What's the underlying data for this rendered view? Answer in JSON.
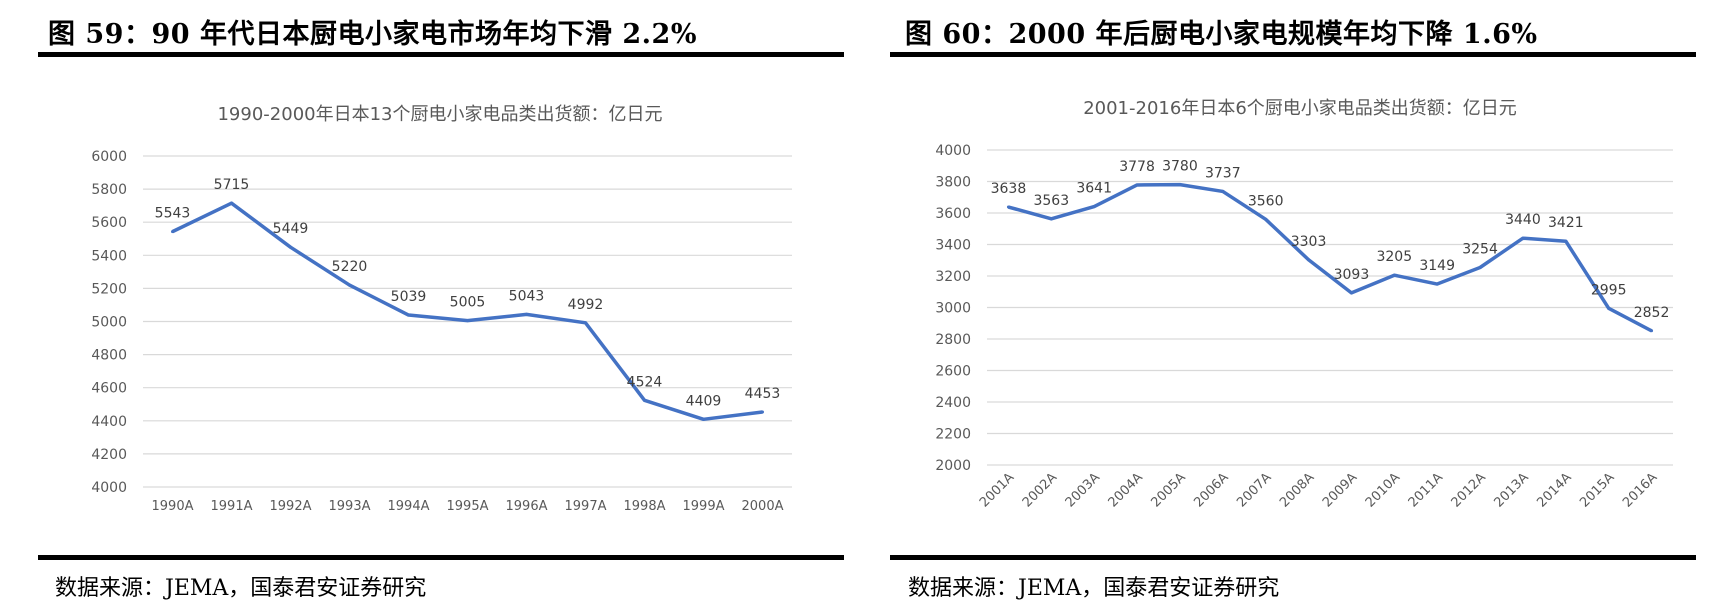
{
  "figures": [
    {
      "title": "图 59：90 年代日本厨电小家电市场年均下滑 2.2%",
      "source": "数据来源：JEMA，国泰君安证券研究"
    },
    {
      "title": "图 60：2000 年后厨电小家电规模年均下降 1.6%",
      "source": "数据来源：JEMA，国泰君安证券研究"
    }
  ],
  "chart_data": [
    {
      "type": "line",
      "title": "1990-2000年日本13个厨电小家电品类出货额：亿日元",
      "categories": [
        "1990A",
        "1991A",
        "1992A",
        "1993A",
        "1994A",
        "1995A",
        "1996A",
        "1997A",
        "1998A",
        "1999A",
        "2000A"
      ],
      "values": [
        5543,
        5715,
        5449,
        5220,
        5039,
        5005,
        5043,
        4992,
        4524,
        4409,
        4453
      ],
      "ylim": [
        4000,
        6000
      ],
      "yticks": [
        4000,
        4200,
        4400,
        4600,
        4800,
        5000,
        5200,
        5400,
        5600,
        5800,
        6000
      ],
      "grid": true,
      "color": "#4472C4",
      "data_labels": true
    },
    {
      "type": "line",
      "title": "2001-2016年日本6个厨电小家电品类出货额：亿日元",
      "categories": [
        "2001A",
        "2002A",
        "2003A",
        "2004A",
        "2005A",
        "2006A",
        "2007A",
        "2008A",
        "2009A",
        "2010A",
        "2011A",
        "2012A",
        "2013A",
        "2014A",
        "2015A",
        "2016A"
      ],
      "values": [
        3638,
        3563,
        3641,
        3778,
        3780,
        3737,
        3560,
        3303,
        3093,
        3205,
        3149,
        3254,
        3440,
        3421,
        2995,
        2852
      ],
      "ylim": [
        2000,
        4000
      ],
      "yticks": [
        2000,
        2200,
        2400,
        2600,
        2800,
        3000,
        3200,
        3400,
        3600,
        3800,
        4000
      ],
      "grid": true,
      "color": "#4472C4",
      "data_labels": true,
      "xlabel_rotation": -45
    }
  ]
}
